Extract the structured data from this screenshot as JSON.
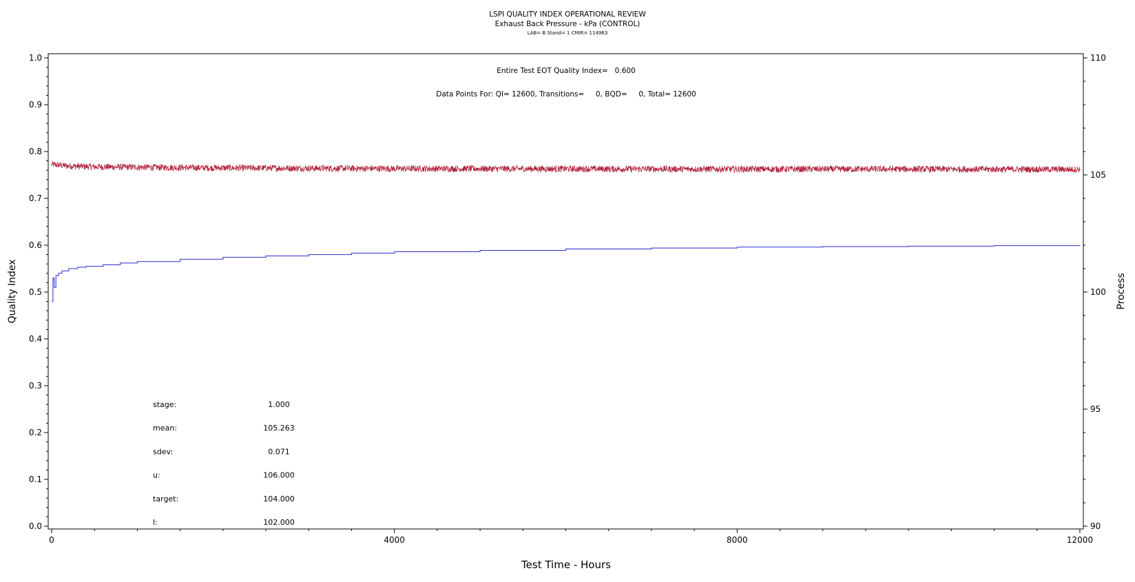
{
  "header": {
    "title": "LSPI QUALITY INDEX OPERATIONAL REVIEW",
    "subtitle": "Exhaust Back Pressure - kPa (CONTROL)",
    "info": "LAB= B Stand= 1 CMIR= 114963"
  },
  "annotations": {
    "eot": "Entire Test EOT Quality Index=   0.600",
    "points": "Data Points For: QI= 12600, Transitions=     0, BQD=     0, Total= 12600"
  },
  "stats": [
    {
      "label": "stage:",
      "value": "1.000"
    },
    {
      "label": "mean:",
      "value": "105.263"
    },
    {
      "label": "sdev:",
      "value": "0.071"
    },
    {
      "label": "u:",
      "value": "106.000"
    },
    {
      "label": "target:",
      "value": "104.000"
    },
    {
      "label": "l:",
      "value": "102.000"
    }
  ],
  "chart_data": {
    "type": "line",
    "xlabel": "Test Time - Hours",
    "ylabel": "Quality Index",
    "y2label": "Process",
    "xlim": [
      0,
      12000
    ],
    "ylim": [
      0,
      1.0
    ],
    "y2lim": [
      90,
      110
    ],
    "x_ticks": [
      0,
      4000,
      8000,
      12000
    ],
    "y_ticks": [
      "0.0",
      "0.1",
      "0.2",
      "0.3",
      "0.4",
      "0.5",
      "0.6",
      "0.7",
      "0.8",
      "0.9",
      "1.0"
    ],
    "y2_ticks": [
      "90",
      "95",
      "100",
      "105",
      "110"
    ],
    "colors": {
      "process": "#b0203a",
      "quality": "#2a2ad0"
    },
    "series": [
      {
        "axis": "right",
        "color": "#b0203a",
        "x": [
          0,
          200,
          500,
          1000,
          2000,
          4000,
          6000,
          8000,
          10000,
          12000
        ],
        "y": [
          105.45,
          105.38,
          105.35,
          105.33,
          105.3,
          105.27,
          105.26,
          105.25,
          105.25,
          105.24
        ],
        "noise": 0.14
      },
      {
        "axis": "left",
        "color": "#2a2ad0",
        "x": [
          0,
          15,
          30,
          50,
          80,
          120,
          200,
          300,
          400,
          600,
          800,
          1000,
          1500,
          2000,
          2500,
          3000,
          3500,
          4000,
          5000,
          6000,
          7000,
          8000,
          9000,
          10000,
          11000,
          12000
        ],
        "y": [
          0.48,
          0.53,
          0.51,
          0.535,
          0.54,
          0.545,
          0.55,
          0.553,
          0.555,
          0.558,
          0.562,
          0.565,
          0.57,
          0.574,
          0.577,
          0.58,
          0.583,
          0.586,
          0.589,
          0.592,
          0.594,
          0.596,
          0.597,
          0.598,
          0.599,
          0.6
        ]
      }
    ]
  }
}
